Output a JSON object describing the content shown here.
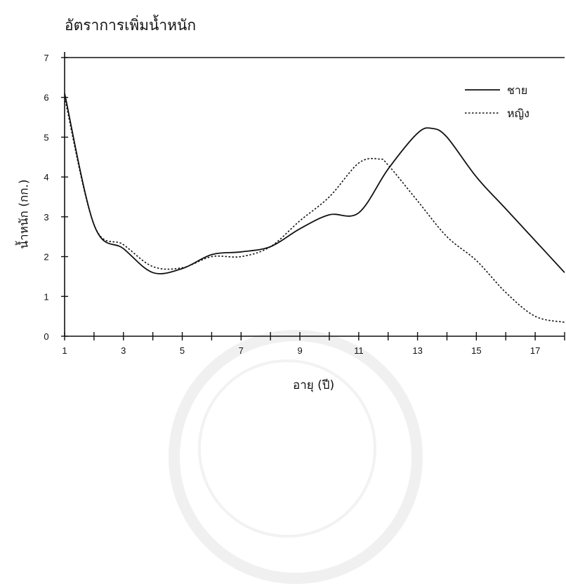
{
  "chart_data": {
    "type": "line",
    "title": "อัตราการเพิ่มน้ำหนัก",
    "xlabel": "อายุ (ปี)",
    "ylabel": "น้ำหนัก (กก.)",
    "xlim": [
      1,
      18
    ],
    "ylim": [
      0,
      7
    ],
    "xticks": [
      1,
      3,
      5,
      7,
      9,
      11,
      13,
      15,
      17
    ],
    "yticks": [
      0,
      1,
      2,
      3,
      4,
      5,
      6,
      7
    ],
    "grid": false,
    "legend_position": "top-right",
    "series": [
      {
        "name": "ชาย",
        "style": "solid",
        "color": "#111111",
        "x": [
          1,
          2,
          3,
          4,
          5,
          6,
          7,
          8,
          9,
          10,
          11,
          12,
          13,
          13.5,
          14,
          15,
          16,
          17,
          18
        ],
        "y": [
          6.1,
          2.8,
          2.2,
          1.6,
          1.7,
          2.05,
          2.12,
          2.25,
          2.7,
          3.05,
          3.1,
          4.2,
          5.1,
          5.22,
          5.0,
          4.0,
          3.2,
          2.4,
          1.6
        ]
      },
      {
        "name": "หญิง",
        "style": "dotted",
        "color": "#111111",
        "x": [
          1,
          2,
          3,
          4,
          5,
          6,
          7,
          8,
          9,
          10,
          11,
          11.7,
          12,
          13,
          14,
          15,
          16,
          17,
          18
        ],
        "y": [
          6.0,
          2.8,
          2.3,
          1.75,
          1.72,
          2.0,
          2.0,
          2.25,
          2.9,
          3.5,
          4.35,
          4.45,
          4.3,
          3.4,
          2.5,
          1.9,
          1.1,
          0.5,
          0.35
        ]
      }
    ]
  }
}
